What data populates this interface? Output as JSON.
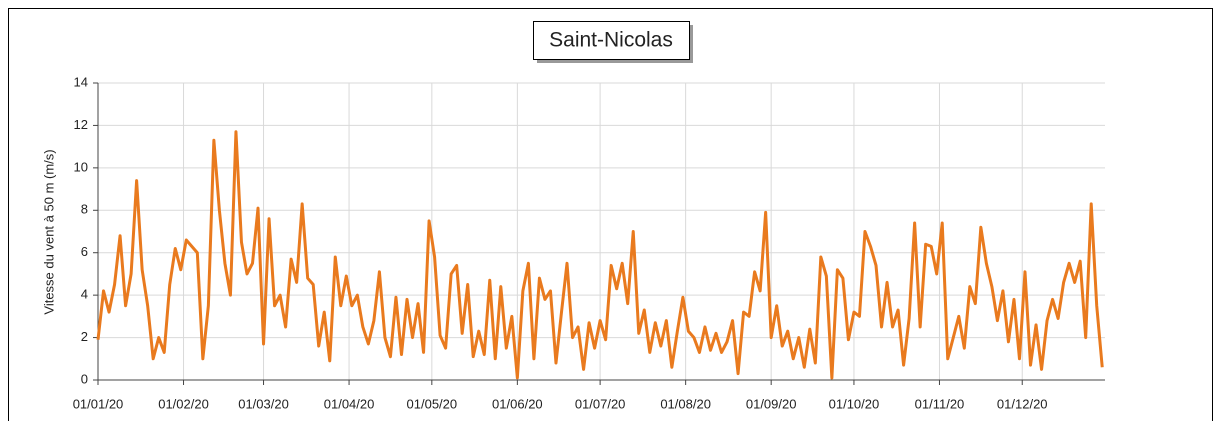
{
  "chart_data": {
    "type": "line",
    "title": "Saint-Nicolas",
    "y_label": "Vitesse du vent à 50 m (m/s)",
    "x": [
      "01/01/20",
      "03/01/20",
      "05/01/20",
      "07/01/20",
      "09/01/20",
      "11/01/20",
      "13/01/20",
      "15/01/20",
      "17/01/20",
      "19/01/20",
      "21/01/20",
      "23/01/20",
      "25/01/20",
      "27/01/20",
      "29/01/20",
      "31/01/20",
      "02/02/20",
      "04/02/20",
      "06/02/20",
      "08/02/20",
      "10/02/20",
      "12/02/20",
      "14/02/20",
      "16/02/20",
      "18/02/20",
      "20/02/20",
      "22/02/20",
      "24/02/20",
      "26/02/20",
      "28/02/20",
      "01/03/20",
      "03/03/20",
      "05/03/20",
      "07/03/20",
      "09/03/20",
      "11/03/20",
      "13/03/20",
      "15/03/20",
      "17/03/20",
      "19/03/20",
      "21/03/20",
      "23/03/20",
      "25/03/20",
      "27/03/20",
      "29/03/20",
      "31/03/20",
      "02/04/20",
      "04/04/20",
      "06/04/20",
      "08/04/20",
      "10/04/20",
      "12/04/20",
      "14/04/20",
      "16/04/20",
      "18/04/20",
      "20/04/20",
      "22/04/20",
      "24/04/20",
      "26/04/20",
      "28/04/20",
      "30/04/20",
      "02/05/20",
      "04/05/20",
      "06/05/20",
      "08/05/20",
      "10/05/20",
      "12/05/20",
      "14/05/20",
      "16/05/20",
      "18/05/20",
      "20/05/20",
      "22/05/20",
      "24/05/20",
      "26/05/20",
      "28/05/20",
      "30/05/20",
      "01/06/20",
      "03/06/20",
      "05/06/20",
      "07/06/20",
      "09/06/20",
      "11/06/20",
      "13/06/20",
      "15/06/20",
      "17/06/20",
      "19/06/20",
      "21/06/20",
      "23/06/20",
      "25/06/20",
      "27/06/20",
      "29/06/20",
      "01/07/20",
      "03/07/20",
      "05/07/20",
      "07/07/20",
      "09/07/20",
      "11/07/20",
      "13/07/20",
      "15/07/20",
      "17/07/20",
      "19/07/20",
      "21/07/20",
      "23/07/20",
      "25/07/20",
      "27/07/20",
      "29/07/20",
      "31/07/20",
      "02/08/20",
      "04/08/20",
      "06/08/20",
      "08/08/20",
      "10/08/20",
      "12/08/20",
      "14/08/20",
      "16/08/20",
      "18/08/20",
      "20/08/20",
      "22/08/20",
      "24/08/20",
      "26/08/20",
      "28/08/20",
      "30/08/20",
      "01/09/20",
      "03/09/20",
      "05/09/20",
      "07/09/20",
      "09/09/20",
      "11/09/20",
      "13/09/20",
      "15/09/20",
      "17/09/20",
      "19/09/20",
      "21/09/20",
      "23/09/20",
      "25/09/20",
      "27/09/20",
      "29/09/20",
      "01/10/20",
      "03/10/20",
      "05/10/20",
      "07/10/20",
      "09/10/20",
      "11/10/20",
      "13/10/20",
      "15/10/20",
      "17/10/20",
      "19/10/20",
      "21/10/20",
      "23/10/20",
      "25/10/20",
      "27/10/20",
      "29/10/20",
      "31/10/20",
      "02/11/20",
      "04/11/20",
      "06/11/20",
      "08/11/20",
      "10/11/20",
      "12/11/20",
      "14/11/20",
      "16/11/20",
      "18/11/20",
      "20/11/20",
      "22/11/20",
      "24/11/20",
      "26/11/20",
      "28/11/20",
      "30/11/20",
      "02/12/20",
      "04/12/20",
      "06/12/20",
      "08/12/20",
      "10/12/20",
      "12/12/20",
      "14/12/20",
      "16/12/20",
      "18/12/20",
      "20/12/20",
      "22/12/20",
      "24/12/20",
      "26/12/20",
      "28/12/20",
      "30/12/20"
    ],
    "series": [
      {
        "color": "#e97a1e",
        "values": [
          1.9,
          4.2,
          3.2,
          4.5,
          6.8,
          3.5,
          5.0,
          9.4,
          5.2,
          3.5,
          1.0,
          2.0,
          1.3,
          4.5,
          6.2,
          5.2,
          6.6,
          6.3,
          6.0,
          1.0,
          3.5,
          11.3,
          8.0,
          5.5,
          4.0,
          11.7,
          6.5,
          5.0,
          5.5,
          8.1,
          1.7,
          7.6,
          3.5,
          4.0,
          2.5,
          5.7,
          4.6,
          8.3,
          4.8,
          4.5,
          1.6,
          3.2,
          0.9,
          5.8,
          3.5,
          4.9,
          3.5,
          4.0,
          2.5,
          1.7,
          2.8,
          5.1,
          2.0,
          1.1,
          3.9,
          1.2,
          3.8,
          2.0,
          3.6,
          1.3,
          7.5,
          5.8,
          2.1,
          1.5,
          5.0,
          5.4,
          2.2,
          4.5,
          1.1,
          2.3,
          1.2,
          4.7,
          1.0,
          4.4,
          1.5,
          3.0,
          0.1,
          4.2,
          5.5,
          1.0,
          4.8,
          3.8,
          4.2,
          0.8,
          3.2,
          5.5,
          2.0,
          2.5,
          0.5,
          2.7,
          1.5,
          2.8,
          1.9,
          5.4,
          4.3,
          5.5,
          3.6,
          7.0,
          2.2,
          3.3,
          1.3,
          2.7,
          1.6,
          2.8,
          0.6,
          2.3,
          3.9,
          2.3,
          2.0,
          1.3,
          2.5,
          1.4,
          2.2,
          1.3,
          1.8,
          2.8,
          0.3,
          3.2,
          3.0,
          5.1,
          4.2,
          7.9,
          2.0,
          3.5,
          1.6,
          2.3,
          1.0,
          2.0,
          0.6,
          2.4,
          0.8,
          5.8,
          4.9,
          0.1,
          5.2,
          4.8,
          1.9,
          3.2,
          3.0,
          7.0,
          6.3,
          5.4,
          2.5,
          4.6,
          2.5,
          3.3,
          0.7,
          2.9,
          7.4,
          2.5,
          6.4,
          6.3,
          5.0,
          7.4,
          1.0,
          2.0,
          3.0,
          1.5,
          4.4,
          3.6,
          7.2,
          5.5,
          4.4,
          2.8,
          4.2,
          1.8,
          3.8,
          1.0,
          5.1,
          0.7,
          2.6,
          0.5,
          2.8,
          3.8,
          2.9,
          4.6,
          5.5,
          4.6,
          5.6,
          2.0,
          8.3,
          3.5,
          0.6
        ]
      }
    ],
    "xlim": [
      "01/01/20",
      "31/12/20"
    ],
    "xticks": [
      "01/01/20",
      "01/02/20",
      "01/03/20",
      "01/04/20",
      "01/05/20",
      "01/06/20",
      "01/07/20",
      "01/08/20",
      "01/09/20",
      "01/10/20",
      "01/11/20",
      "01/12/20"
    ],
    "ylim": [
      0,
      14
    ],
    "yticks": [
      0,
      2,
      4,
      6,
      8,
      10,
      12,
      14
    ],
    "grid": true
  }
}
